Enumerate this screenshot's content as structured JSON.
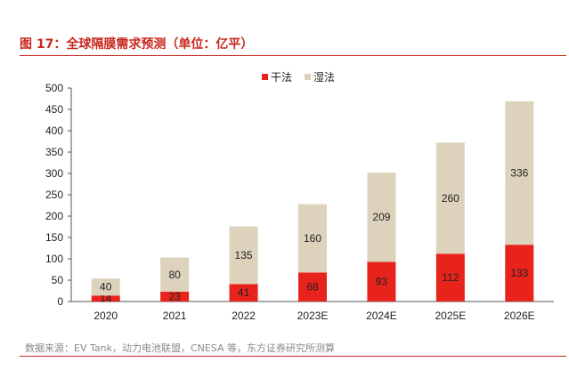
{
  "header": {
    "title": "图 17：全球隔膜需求预测（单位：亿平）"
  },
  "footer": {
    "source": "数据来源：EV Tank，动力电池联盟，CNESA 等，东方证券研究所测算"
  },
  "colors": {
    "accent": "#c8281e",
    "dry": "#e8231b",
    "wet": "#ddd3bd"
  },
  "chart_data": {
    "type": "bar",
    "stacked": true,
    "categories": [
      "2020",
      "2021",
      "2022",
      "2023E",
      "2024E",
      "2025E",
      "2026E"
    ],
    "series": [
      {
        "name": "干法",
        "values": [
          14,
          23,
          41,
          68,
          93,
          112,
          133
        ],
        "color": "#e8231b"
      },
      {
        "name": "湿法",
        "values": [
          40,
          80,
          135,
          160,
          209,
          260,
          336
        ],
        "color": "#ddd3bd"
      }
    ],
    "ylim": [
      0,
      500
    ],
    "yticks": [
      0,
      50,
      100,
      150,
      200,
      250,
      300,
      350,
      400,
      450,
      500
    ],
    "grid": false,
    "legend": "top-center"
  }
}
